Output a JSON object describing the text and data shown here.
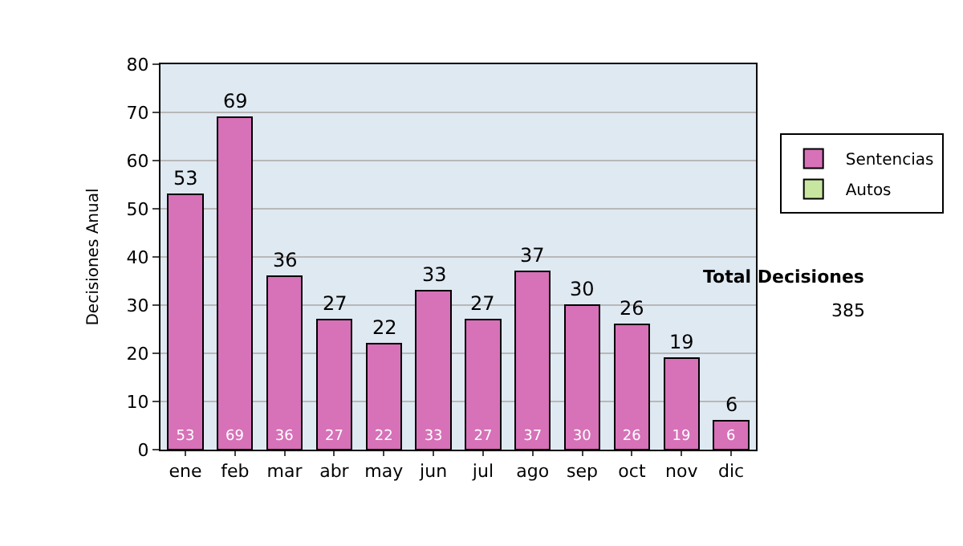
{
  "chart_data": {
    "type": "bar",
    "ylabel": "Decisiones Anual",
    "categories": [
      "ene",
      "feb",
      "mar",
      "abr",
      "may",
      "jun",
      "jul",
      "ago",
      "sep",
      "oct",
      "nov",
      "dic"
    ],
    "series": [
      {
        "name": "Sentencias",
        "color": "#d771b8",
        "values": [
          53,
          69,
          36,
          27,
          22,
          33,
          27,
          37,
          30,
          26,
          19,
          6
        ]
      },
      {
        "name": "Autos",
        "color": "#c8e6a0",
        "values": [
          null,
          null,
          null,
          null,
          null,
          null,
          null,
          null,
          null,
          null,
          null,
          null
        ]
      }
    ],
    "stacked": true,
    "data_labels": true,
    "totals": [
      "53",
      "69",
      "36",
      "27",
      "22",
      "33",
      "27",
      "37",
      "30",
      "26",
      "19",
      "6"
    ],
    "ylim": [
      0,
      80
    ],
    "yticks": [
      0,
      10,
      20,
      30,
      40,
      50,
      60,
      70,
      80
    ],
    "grid": "y",
    "legend": "right",
    "annotations": [
      "Total Decisiones",
      "385"
    ]
  }
}
